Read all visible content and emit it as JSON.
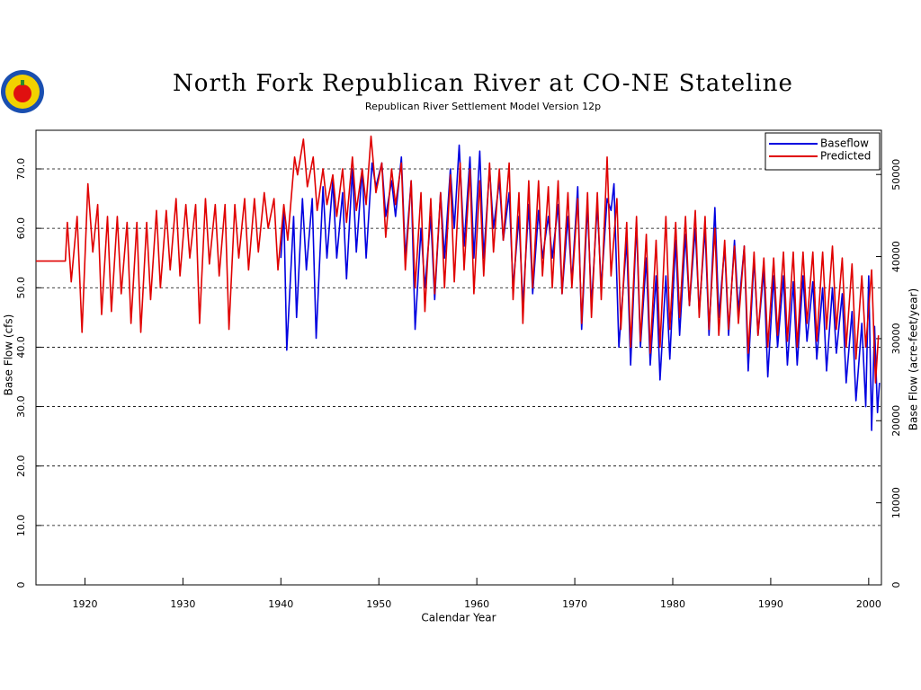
{
  "chart_data": {
    "type": "line",
    "title": "North Fork Republican River at CO-NE Stateline",
    "subtitle": "Republican River Settlement Model Version 12p",
    "x_label": "Calendar Year",
    "y_label": "Base Flow (cfs)",
    "y2_label": "Base Flow (acre-feet/year)",
    "xlim": [
      1915,
      2001.3
    ],
    "xticks": [
      1920,
      1930,
      1940,
      1950,
      1960,
      1970,
      1980,
      1990,
      2000
    ],
    "ylim": [
      0,
      76.5
    ],
    "yticks": [
      0,
      {
        "value": 10,
        "label": "10.0"
      },
      {
        "value": 20,
        "label": "20.0"
      },
      {
        "value": 30,
        "label": "30.0"
      },
      {
        "value": 40,
        "label": "40.0"
      },
      {
        "value": 50,
        "label": "50.0"
      },
      {
        "value": 60,
        "label": "60.0"
      },
      {
        "value": 70,
        "label": "70.0"
      }
    ],
    "y2lim": [
      0,
      55386
    ],
    "y2ticks": [
      0,
      10000,
      20000,
      30000,
      40000,
      50000
    ],
    "grid": true,
    "legend": "top-right",
    "series": [
      {
        "name": "Baseflow",
        "color": "#0000e0",
        "x": [
          1940.0,
          1940.3,
          1940.6,
          1941.3,
          1941.6,
          1942.2,
          1942.6,
          1943.2,
          1943.6,
          1944.3,
          1944.7,
          1945.3,
          1945.7,
          1946.3,
          1946.7,
          1947.3,
          1947.7,
          1948.3,
          1948.7,
          1949.3,
          1949.7,
          1950.3,
          1950.7,
          1951.3,
          1951.7,
          1952.3,
          1952.7,
          1953.3,
          1953.7,
          1954.3,
          1954.7,
          1955.3,
          1955.7,
          1956.3,
          1956.7,
          1957.3,
          1957.7,
          1958.2,
          1958.7,
          1959.3,
          1959.7,
          1960.3,
          1960.7,
          1961.3,
          1961.7,
          1962.3,
          1962.7,
          1963.3,
          1963.7,
          1964.3,
          1964.7,
          1965.3,
          1965.7,
          1966.3,
          1966.7,
          1967.3,
          1967.7,
          1968.3,
          1968.7,
          1969.3,
          1969.7,
          1970.3,
          1970.7,
          1971.3,
          1971.7,
          1972.3,
          1972.7,
          1973.3,
          1973.7,
          1974.0,
          1974.5,
          1975.3,
          1975.7,
          1976.3,
          1976.7,
          1977.3,
          1977.7,
          1978.3,
          1978.7,
          1979.3,
          1979.7,
          1980.3,
          1980.7,
          1981.3,
          1981.7,
          1982.3,
          1982.7,
          1983.3,
          1983.7,
          1984.3,
          1984.7,
          1985.3,
          1985.7,
          1986.3,
          1986.7,
          1987.3,
          1987.7,
          1988.3,
          1988.7,
          1989.3,
          1989.7,
          1990.3,
          1990.7,
          1991.3,
          1991.7,
          1992.3,
          1992.7,
          1993.3,
          1993.7,
          1994.3,
          1994.7,
          1995.3,
          1995.7,
          1996.3,
          1996.7,
          1997.3,
          1997.7,
          1998.3,
          1998.7,
          1999.3,
          1999.7,
          2000.0,
          2000.3,
          2000.6,
          2000.9,
          2001.1
        ],
        "values": [
          55,
          63,
          39.5,
          62,
          45,
          65,
          53,
          65,
          41.5,
          67,
          55,
          68,
          55,
          66,
          51.5,
          70,
          56,
          70,
          55,
          71,
          67,
          71,
          62,
          68,
          62,
          72,
          55,
          68,
          43,
          60,
          50,
          62,
          48,
          66,
          55,
          70,
          60,
          74,
          57,
          72,
          55,
          73,
          55,
          70,
          60,
          68,
          58,
          66,
          50,
          62,
          47,
          64,
          49,
          63,
          55,
          62,
          55,
          64,
          49,
          62,
          51,
          67,
          43,
          64,
          47,
          64,
          50,
          65,
          63,
          67.5,
          40,
          58,
          37,
          61,
          40,
          55,
          37,
          52,
          34.5,
          52,
          38,
          58,
          42,
          59,
          47,
          60,
          46,
          60,
          42,
          63.5,
          45,
          57,
          42,
          58,
          46,
          57,
          36,
          55,
          42,
          53,
          35,
          52,
          40,
          52,
          37,
          51,
          37,
          52,
          41,
          51,
          38,
          50,
          36,
          50,
          39,
          49,
          34,
          46,
          31,
          44,
          30,
          52,
          26,
          43.5,
          29,
          34
        ]
      },
      {
        "name": "Predicted",
        "color": "#e00000",
        "x": [
          1915.0,
          1918.0,
          1918.2,
          1918.6,
          1919.2,
          1919.7,
          1920.3,
          1920.8,
          1921.3,
          1921.7,
          1922.3,
          1922.7,
          1923.3,
          1923.7,
          1924.3,
          1924.7,
          1925.3,
          1925.7,
          1926.3,
          1926.7,
          1927.3,
          1927.7,
          1928.3,
          1928.7,
          1929.3,
          1929.7,
          1930.3,
          1930.7,
          1931.3,
          1931.7,
          1932.3,
          1932.7,
          1933.3,
          1933.7,
          1934.3,
          1934.7,
          1935.3,
          1935.7,
          1936.3,
          1936.7,
          1937.3,
          1937.7,
          1938.3,
          1938.7,
          1939.3,
          1939.7,
          1940.3,
          1940.7,
          1941.4,
          1941.7,
          1942.3,
          1942.7,
          1943.3,
          1943.7,
          1944.3,
          1944.7,
          1945.3,
          1945.7,
          1946.3,
          1946.7,
          1947.3,
          1947.7,
          1948.3,
          1948.7,
          1949.2,
          1949.7,
          1950.3,
          1950.7,
          1951.3,
          1951.7,
          1952.3,
          1952.7,
          1953.3,
          1953.7,
          1954.3,
          1954.7,
          1955.3,
          1955.7,
          1956.3,
          1956.7,
          1957.3,
          1957.7,
          1958.3,
          1958.7,
          1959.3,
          1959.7,
          1960.3,
          1960.7,
          1961.3,
          1961.7,
          1962.3,
          1962.7,
          1963.3,
          1963.7,
          1964.3,
          1964.7,
          1965.3,
          1965.7,
          1966.3,
          1966.7,
          1967.3,
          1967.7,
          1968.3,
          1968.7,
          1969.3,
          1969.7,
          1970.3,
          1970.7,
          1971.3,
          1971.7,
          1972.3,
          1972.7,
          1973.3,
          1973.7,
          1974.3,
          1974.7,
          1975.3,
          1975.7,
          1976.3,
          1976.7,
          1977.3,
          1977.7,
          1978.3,
          1978.7,
          1979.3,
          1979.7,
          1980.3,
          1980.7,
          1981.3,
          1981.7,
          1982.3,
          1982.7,
          1983.3,
          1983.7,
          1984.3,
          1984.7,
          1985.3,
          1985.7,
          1986.3,
          1986.7,
          1987.3,
          1987.7,
          1988.3,
          1988.7,
          1989.3,
          1989.7,
          1990.3,
          1990.7,
          1991.3,
          1991.7,
          1992.3,
          1992.7,
          1993.3,
          1993.7,
          1994.3,
          1994.7,
          1995.3,
          1995.7,
          1996.3,
          1996.7,
          1997.3,
          1997.7,
          1998.3,
          1998.7,
          1999.3,
          1999.7,
          2000.3,
          2000.7,
          2001.0
        ],
        "values": [
          54.5,
          54.5,
          61,
          51,
          62,
          42.5,
          67.5,
          56,
          64,
          45.5,
          62,
          46,
          62,
          49,
          61,
          44,
          61,
          42.5,
          61,
          48,
          63,
          50,
          63,
          53,
          65,
          52,
          64,
          55,
          64,
          44,
          65,
          54,
          64,
          52,
          64,
          43,
          64,
          55,
          65,
          53,
          65,
          56,
          66,
          60,
          65,
          53,
          64,
          58,
          72,
          69,
          75,
          67,
          72,
          63,
          70,
          64,
          69,
          62,
          70,
          61,
          72,
          63,
          70,
          64,
          75.5,
          66,
          71,
          58.5,
          70,
          64,
          71,
          53,
          68,
          50,
          66,
          46,
          65,
          49,
          66,
          50,
          69,
          51,
          71,
          53,
          70,
          49,
          68,
          52,
          71,
          56,
          70,
          58,
          71,
          48,
          66,
          44,
          68,
          50,
          68,
          52,
          67,
          50,
          68,
          49,
          66,
          50,
          65,
          44,
          66,
          45,
          66,
          48,
          72,
          52,
          65,
          43,
          61,
          40,
          62,
          41,
          59,
          39,
          58,
          40,
          62,
          43,
          61,
          45,
          62,
          47,
          63,
          45,
          62,
          43,
          60,
          42,
          58,
          43,
          57,
          44,
          57,
          39,
          56,
          42,
          55,
          40,
          55,
          42,
          56,
          41,
          56,
          40,
          56,
          44,
          56,
          41,
          56,
          43,
          57,
          43,
          55,
          40,
          54,
          38,
          52,
          40,
          53,
          34,
          42
        ]
      }
    ]
  }
}
